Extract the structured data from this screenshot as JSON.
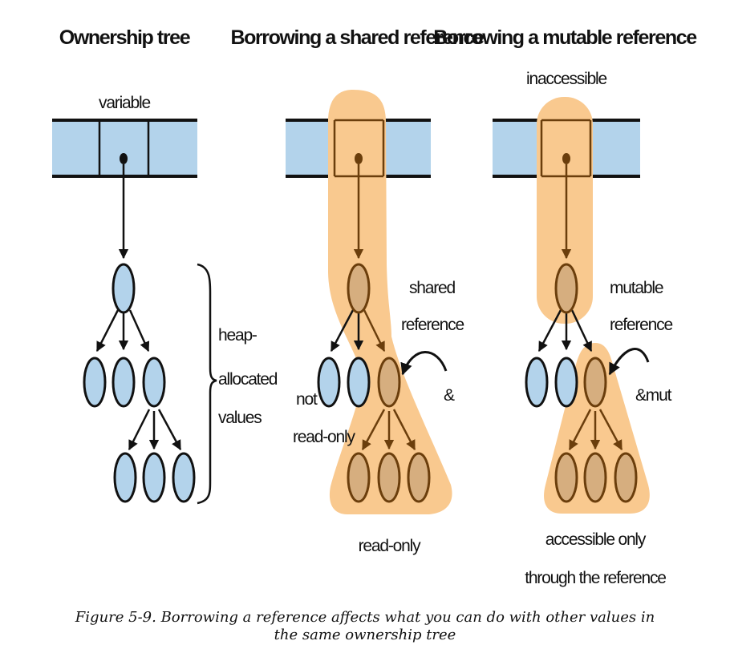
{
  "panels": [
    {
      "title": "Ownership tree",
      "label_variable": "variable",
      "brace_label": [
        "heap-",
        "allocated",
        "values"
      ]
    },
    {
      "title": "Borrowing a shared reference",
      "reference_label": [
        "shared",
        "reference"
      ],
      "reference_symbol": "&",
      "side_label": [
        "not",
        "read-only"
      ],
      "bottom_label": [
        "read-only"
      ]
    },
    {
      "title": "Borrowing a mutable reference",
      "label_top": "inaccessible",
      "reference_label": [
        "mutable",
        "reference"
      ],
      "reference_symbol": "&mut",
      "bottom_label": [
        "accessible only",
        "through the reference"
      ]
    }
  ],
  "caption": {
    "line1": "Figure 5-9. Borrowing a reference affects what you can do with other values in",
    "line2": "the same ownership tree"
  },
  "colors": {
    "node_fill": "#b3d3eb",
    "highlight_fill": "#f9c98f",
    "borrowed_node_fill": "#d6ae7f",
    "borrowed_stroke": "#6b3e0c",
    "line": "#111111"
  }
}
